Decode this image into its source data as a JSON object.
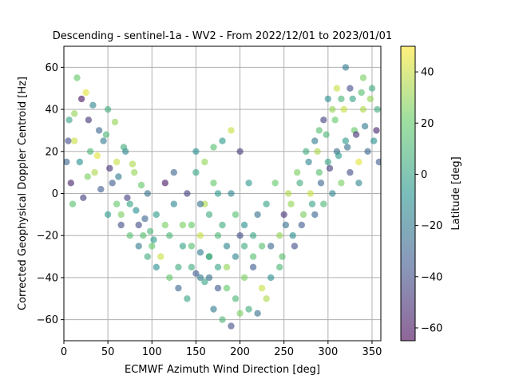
{
  "chart_data": {
    "type": "scatter",
    "title": "Descending - sentinel-1a - WV2 - From 2022/12/01 to 2023/01/01",
    "xlabel": "ECMWF Azimuth Wind Direction [deg]",
    "ylabel": "Corrected Geophysical Doppler Centroid [Hz]",
    "xlim": [
      0,
      360
    ],
    "ylim": [
      -70,
      70
    ],
    "xticks": [
      0,
      50,
      100,
      150,
      200,
      250,
      300,
      350
    ],
    "yticks": [
      -60,
      -40,
      -20,
      0,
      20,
      40,
      60
    ],
    "grid": true,
    "colorbar": {
      "label": "Latitude [deg]",
      "range": [
        -65,
        50
      ],
      "ticks": [
        -60,
        -40,
        -20,
        0,
        20,
        40
      ],
      "colormap": "viridis",
      "colors": [
        "#440154",
        "#3b528b",
        "#21918c",
        "#5ec962",
        "#fde725"
      ]
    },
    "series": [
      {
        "columns": [
          "x",
          "y",
          "latitude"
        ],
        "points": [
          [
            5,
            25,
            -40
          ],
          [
            12,
            38,
            30
          ],
          [
            18,
            15,
            -10
          ],
          [
            25,
            48,
            45
          ],
          [
            8,
            5,
            -55
          ],
          [
            30,
            20,
            10
          ],
          [
            40,
            30,
            -30
          ],
          [
            15,
            55,
            20
          ],
          [
            22,
            -2,
            -45
          ],
          [
            35,
            10,
            35
          ],
          [
            45,
            25,
            -20
          ],
          [
            50,
            40,
            5
          ],
          [
            10,
            -5,
            15
          ],
          [
            28,
            35,
            -50
          ],
          [
            60,
            15,
            40
          ],
          [
            55,
            5,
            -35
          ],
          [
            65,
            -10,
            25
          ],
          [
            70,
            20,
            -15
          ],
          [
            75,
            -5,
            0
          ],
          [
            80,
            10,
            30
          ],
          [
            85,
            -15,
            -40
          ],
          [
            90,
            -20,
            15
          ],
          [
            95,
            0,
            -25
          ],
          [
            100,
            -25,
            20
          ],
          [
            105,
            -10,
            -5
          ],
          [
            110,
            -30,
            40
          ],
          [
            115,
            5,
            -60
          ],
          [
            120,
            -20,
            10
          ],
          [
            125,
            10,
            -30
          ],
          [
            130,
            -35,
            5
          ],
          [
            135,
            -15,
            25
          ],
          [
            140,
            0,
            -45
          ],
          [
            145,
            -25,
            15
          ],
          [
            150,
            10,
            0
          ],
          [
            155,
            -40,
            -20
          ],
          [
            160,
            -5,
            35
          ],
          [
            165,
            -30,
            -10
          ],
          [
            170,
            5,
            20
          ],
          [
            175,
            -45,
            -35
          ],
          [
            180,
            -15,
            5
          ],
          [
            185,
            -35,
            30
          ],
          [
            190,
            0,
            -15
          ],
          [
            195,
            -50,
            10
          ],
          [
            200,
            -20,
            -40
          ],
          [
            205,
            -40,
            25
          ],
          [
            210,
            5,
            -5
          ],
          [
            215,
            -30,
            15
          ],
          [
            220,
            -10,
            -25
          ],
          [
            225,
            -45,
            40
          ],
          [
            230,
            -5,
            0
          ],
          [
            235,
            -25,
            -30
          ],
          [
            240,
            5,
            20
          ],
          [
            245,
            -35,
            10
          ],
          [
            250,
            -10,
            -50
          ],
          [
            255,
            0,
            35
          ],
          [
            260,
            -20,
            -10
          ],
          [
            265,
            10,
            25
          ],
          [
            270,
            -15,
            -35
          ],
          [
            275,
            20,
            5
          ],
          [
            280,
            0,
            40
          ],
          [
            285,
            25,
            -20
          ],
          [
            290,
            10,
            15
          ],
          [
            295,
            35,
            -45
          ],
          [
            300,
            15,
            0
          ],
          [
            305,
            40,
            30
          ],
          [
            310,
            20,
            -25
          ],
          [
            315,
            45,
            10
          ],
          [
            320,
            25,
            -5
          ],
          [
            325,
            50,
            -40
          ],
          [
            330,
            30,
            20
          ],
          [
            335,
            5,
            -15
          ],
          [
            340,
            40,
            35
          ],
          [
            345,
            20,
            -30
          ],
          [
            350,
            50,
            5
          ],
          [
            355,
            30,
            -55
          ],
          [
            340,
            55,
            25
          ],
          [
            320,
            60,
            -20
          ],
          [
            310,
            50,
            40
          ],
          [
            300,
            45,
            -10
          ],
          [
            290,
            30,
            15
          ],
          [
            150,
            20,
            -10
          ],
          [
            160,
            15,
            30
          ],
          [
            170,
            -55,
            -20
          ],
          [
            180,
            -60,
            10
          ],
          [
            190,
            -63,
            -40
          ],
          [
            200,
            -57,
            25
          ],
          [
            140,
            -50,
            0
          ],
          [
            130,
            -45,
            -30
          ],
          [
            120,
            -40,
            20
          ],
          [
            210,
            -55,
            5
          ],
          [
            220,
            -57,
            -25
          ],
          [
            230,
            -50,
            35
          ],
          [
            180,
            25,
            -5
          ],
          [
            190,
            30,
            40
          ],
          [
            200,
            20,
            -45
          ],
          [
            170,
            22,
            15
          ],
          [
            160,
            -42,
            0
          ],
          [
            150,
            -38,
            -35
          ],
          [
            175,
            -20,
            10
          ],
          [
            185,
            -25,
            -15
          ],
          [
            165,
            -10,
            5
          ],
          [
            155,
            -5,
            -25
          ],
          [
            145,
            -15,
            20
          ],
          [
            175,
            0,
            -5
          ],
          [
            195,
            -10,
            15
          ],
          [
            205,
            -15,
            -10
          ],
          [
            215,
            -20,
            0
          ],
          [
            165,
            -30,
            10
          ],
          [
            155,
            -28,
            -20
          ],
          [
            145,
            -35,
            5
          ],
          [
            125,
            -5,
            -15
          ],
          [
            135,
            -25,
            0
          ],
          [
            115,
            -15,
            25
          ],
          [
            105,
            -35,
            -10
          ],
          [
            95,
            -30,
            5
          ],
          [
            85,
            -25,
            -20
          ],
          [
            75,
            -20,
            15
          ],
          [
            65,
            -15,
            -40
          ],
          [
            60,
            -5,
            20
          ],
          [
            50,
            -10,
            -5
          ],
          [
            20,
            45,
            -60
          ],
          [
            12,
            25,
            40
          ],
          [
            6,
            35,
            0
          ],
          [
            3,
            15,
            -30
          ],
          [
            27,
            8,
            25
          ],
          [
            33,
            42,
            -15
          ],
          [
            38,
            18,
            45
          ],
          [
            42,
            2,
            -35
          ],
          [
            48,
            28,
            10
          ],
          [
            52,
            12,
            -50
          ],
          [
            58,
            34,
            30
          ],
          [
            62,
            8,
            -20
          ],
          [
            68,
            22,
            5
          ],
          [
            72,
            -2,
            -45
          ],
          [
            78,
            14,
            35
          ],
          [
            82,
            -8,
            -10
          ],
          [
            88,
            4,
            20
          ],
          [
            92,
            -12,
            -30
          ],
          [
            98,
            -18,
            10
          ],
          [
            102,
            -22,
            -5
          ],
          [
            248,
            -30,
            15
          ],
          [
            252,
            -15,
            -25
          ],
          [
            258,
            -5,
            30
          ],
          [
            262,
            -25,
            -40
          ],
          [
            268,
            5,
            5
          ],
          [
            272,
            -10,
            25
          ],
          [
            278,
            15,
            -15
          ],
          [
            282,
            -5,
            0
          ],
          [
            288,
            20,
            35
          ],
          [
            292,
            5,
            -30
          ],
          [
            298,
            28,
            10
          ],
          [
            302,
            12,
            -45
          ],
          [
            308,
            35,
            20
          ],
          [
            312,
            18,
            -5
          ],
          [
            318,
            40,
            40
          ],
          [
            322,
            22,
            -25
          ],
          [
            328,
            45,
            0
          ],
          [
            332,
            28,
            -50
          ],
          [
            338,
            48,
            15
          ],
          [
            342,
            32,
            -20
          ],
          [
            348,
            45,
            30
          ],
          [
            352,
            25,
            -10
          ],
          [
            356,
            40,
            5
          ],
          [
            358,
            15,
            -35
          ],
          [
            335,
            15,
            45
          ],
          [
            325,
            10,
            -40
          ],
          [
            315,
            5,
            25
          ],
          [
            305,
            0,
            -15
          ],
          [
            295,
            -5,
            10
          ],
          [
            285,
            -10,
            -30
          ],
          [
            175,
            -35,
            0
          ],
          [
            185,
            -45,
            20
          ],
          [
            195,
            -30,
            -15
          ],
          [
            205,
            -25,
            5
          ],
          [
            215,
            -35,
            -35
          ],
          [
            225,
            -25,
            15
          ],
          [
            235,
            -40,
            -10
          ],
          [
            245,
            -20,
            30
          ],
          [
            165,
            -40,
            -25
          ],
          [
            155,
            -20,
            40
          ]
        ]
      }
    ]
  }
}
